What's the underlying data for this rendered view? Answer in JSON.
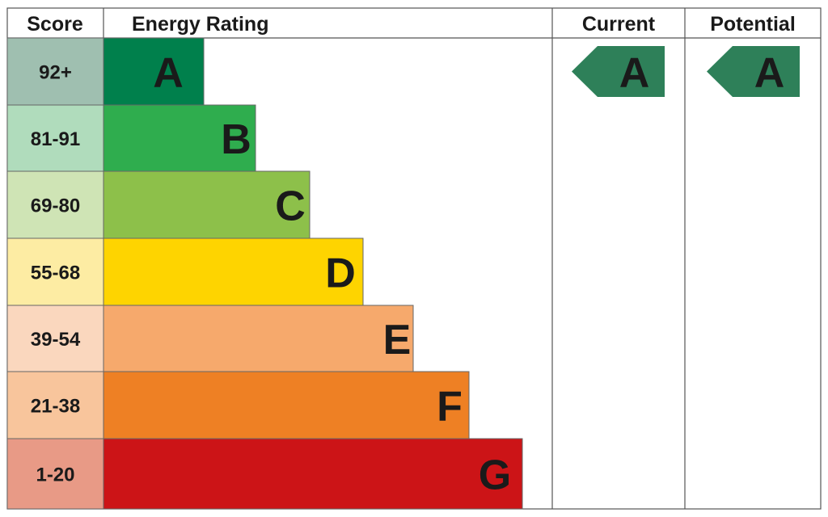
{
  "chart_data": {
    "type": "bar",
    "headers": {
      "score": "Score",
      "rating": "Energy Rating",
      "current": "Current",
      "potential": "Potential"
    },
    "bands": [
      {
        "letter": "A",
        "score": "92+",
        "color": "#00804c",
        "score_bg": "#9fbfb0"
      },
      {
        "letter": "B",
        "score": "81-91",
        "color": "#2fad4e",
        "score_bg": "#b0dcbc"
      },
      {
        "letter": "C",
        "score": "69-80",
        "color": "#8dc04a",
        "score_bg": "#cfe4b5"
      },
      {
        "letter": "D",
        "score": "55-68",
        "color": "#fed400",
        "score_bg": "#fdeca3"
      },
      {
        "letter": "E",
        "score": "39-54",
        "color": "#f6a96c",
        "score_bg": "#fad7be"
      },
      {
        "letter": "F",
        "score": "21-38",
        "color": "#ee8024",
        "score_bg": "#f8c59c"
      },
      {
        "letter": "G",
        "score": "1-20",
        "color": "#cc1417",
        "score_bg": "#e89a86"
      }
    ],
    "current": {
      "letter": "A",
      "color": "#2e8059"
    },
    "potential": {
      "letter": "A",
      "color": "#2e8059"
    }
  }
}
